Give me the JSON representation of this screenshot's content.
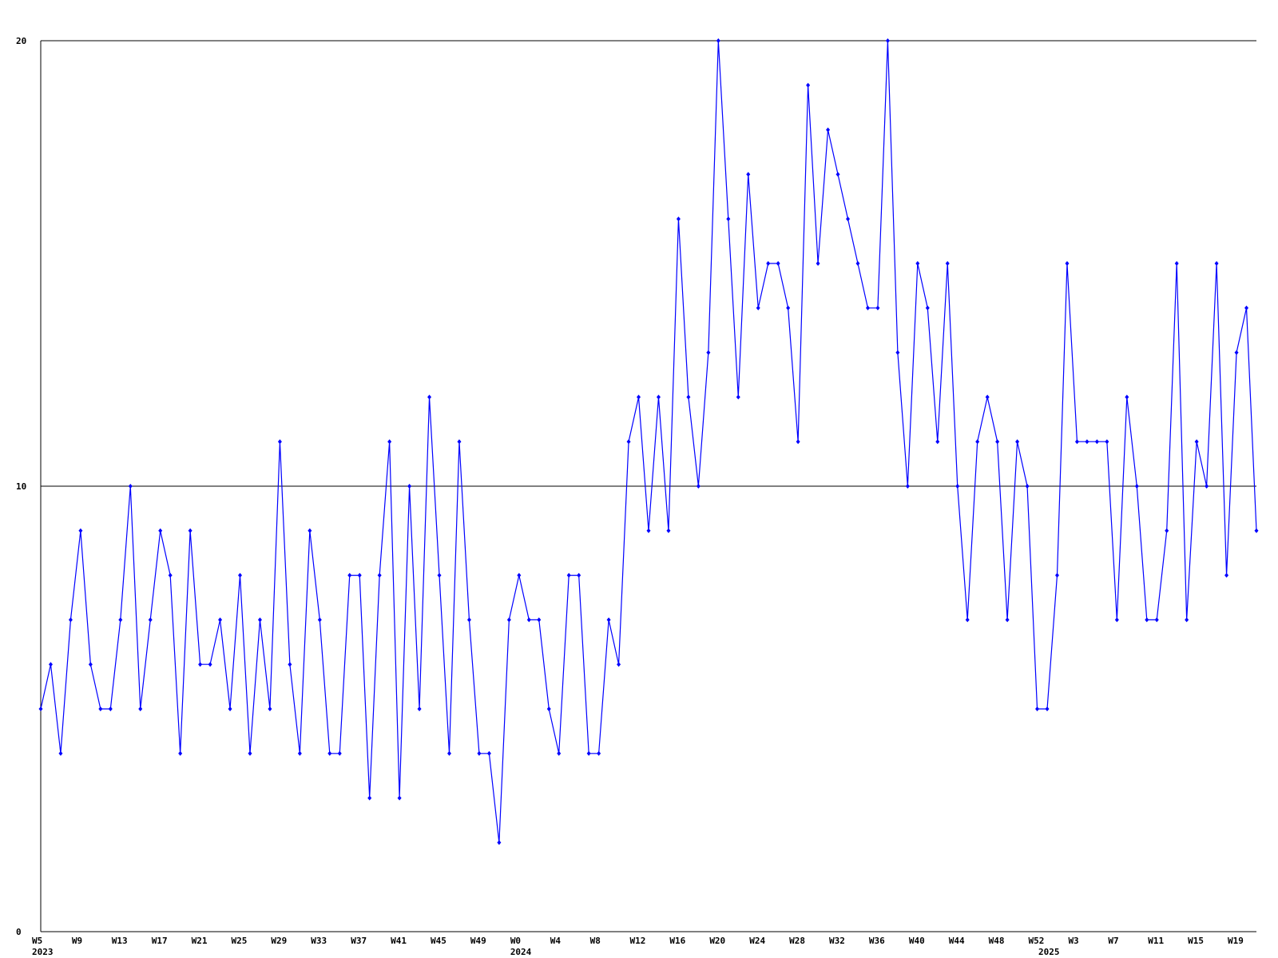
{
  "chart_data": {
    "type": "line",
    "categories": [
      "W5",
      null,
      null,
      null,
      "W9",
      null,
      null,
      null,
      "W13",
      null,
      null,
      null,
      "W17",
      null,
      null,
      null,
      "W21",
      null,
      null,
      null,
      "W25",
      null,
      null,
      null,
      "W29",
      null,
      null,
      null,
      "W33",
      null,
      null,
      null,
      "W37",
      null,
      null,
      null,
      "W41",
      null,
      null,
      null,
      "W45",
      null,
      null,
      null,
      "W49",
      null,
      null,
      null,
      "W0",
      null,
      null,
      null,
      "W4",
      null,
      null,
      null,
      "W8",
      null,
      null,
      null,
      "W12",
      null,
      null,
      null,
      "W16",
      null,
      null,
      null,
      "W20",
      null,
      null,
      null,
      "W24",
      null,
      null,
      null,
      "W28",
      null,
      null,
      null,
      "W32",
      null,
      null,
      null,
      "W36",
      null,
      null,
      null,
      "W40",
      null,
      null,
      null,
      "W44",
      null,
      null,
      null,
      "W48",
      null,
      null,
      null,
      "W52",
      null,
      null,
      null,
      "W3",
      null,
      null,
      null,
      "W7",
      null,
      null,
      null,
      "W11",
      null,
      null,
      null,
      "W15",
      null,
      null,
      null,
      "W19",
      null,
      null
    ],
    "years": [
      "2023",
      null,
      null,
      null,
      null,
      null,
      null,
      null,
      null,
      null,
      null,
      null,
      null,
      null,
      null,
      null,
      null,
      null,
      null,
      null,
      null,
      null,
      null,
      null,
      null,
      null,
      null,
      null,
      null,
      null,
      null,
      null,
      null,
      null,
      null,
      null,
      null,
      null,
      null,
      null,
      null,
      null,
      null,
      null,
      null,
      null,
      null,
      null,
      "2024",
      null,
      null,
      null,
      null,
      null,
      null,
      null,
      null,
      null,
      null,
      null,
      null,
      null,
      null,
      null,
      null,
      null,
      null,
      null,
      null,
      null,
      null,
      null,
      null,
      null,
      null,
      null,
      null,
      null,
      null,
      null,
      null,
      null,
      null,
      null,
      null,
      null,
      null,
      null,
      null,
      null,
      null,
      null,
      null,
      null,
      null,
      null,
      null,
      null,
      null,
      null,
      null,
      "2025",
      null,
      null,
      null,
      null,
      null,
      null,
      null,
      null,
      null,
      null,
      null,
      null,
      null,
      null,
      null,
      null,
      null,
      null,
      null,
      null,
      null
    ],
    "series": [
      {
        "color": "#0000ff",
        "values": [
          5,
          6,
          4,
          7,
          9,
          6,
          5,
          5,
          7,
          10,
          5,
          7,
          9,
          8,
          4,
          9,
          6,
          6,
          7,
          5,
          8,
          4,
          7,
          5,
          11,
          6,
          4,
          9,
          7,
          4,
          4,
          8,
          8,
          3,
          8,
          11,
          3,
          10,
          5,
          12,
          8,
          4,
          11,
          7,
          4,
          4,
          2,
          7,
          8,
          7,
          7,
          5,
          4,
          8,
          8,
          4,
          4,
          7,
          6,
          11,
          12,
          9,
          12,
          9,
          16,
          12,
          10,
          13,
          20,
          16,
          12,
          17,
          14,
          15,
          15,
          14,
          11,
          19,
          15,
          18,
          17,
          16,
          15,
          14,
          14,
          20,
          13,
          10,
          15,
          14,
          11,
          15,
          10,
          7,
          11,
          12,
          11,
          7,
          11,
          10,
          5,
          5,
          8,
          15,
          11,
          11,
          11,
          11,
          7,
          12,
          10,
          7,
          7,
          9,
          15,
          7,
          11,
          10,
          15,
          8,
          13,
          14,
          9
        ]
      }
    ],
    "ylim": [
      0,
      20
    ],
    "yticks": [
      0,
      10,
      20
    ],
    "grid": true
  }
}
